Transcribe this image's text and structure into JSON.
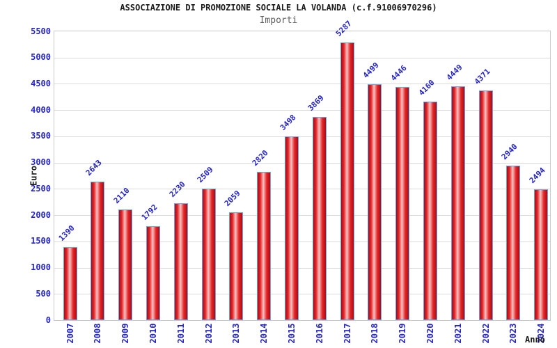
{
  "chart_data": {
    "type": "bar",
    "title": "ASSOCIAZIONE DI PROMOZIONE SOCIALE LA VOLANDA (c.f.91006970296)",
    "subtitle": "Importi",
    "xlabel": "Anno",
    "ylabel": "Euro",
    "categories": [
      "2007",
      "2008",
      "2009",
      "2010",
      "2011",
      "2012",
      "2013",
      "2014",
      "2015",
      "2016",
      "2017",
      "2018",
      "2019",
      "2020",
      "2021",
      "2022",
      "2023",
      "2024"
    ],
    "values": [
      1390,
      2643,
      2110,
      1792,
      2230,
      2509,
      2059,
      2820,
      3498,
      3869,
      5287,
      4499,
      4446,
      4160,
      4449,
      4371,
      2940,
      2494
    ],
    "ylim": [
      0,
      5500
    ],
    "ytick_step": 500,
    "grid": true,
    "legend_position": "none",
    "colors": {
      "label_blue": "#2323cb",
      "bar_dark": "#a80c14",
      "bar_red": "#e62628",
      "bar_light": "#f9c3c3",
      "bar_border": "#64a8e8",
      "band_gray": "#f2f2f2",
      "band_white": "#ffffff",
      "grid_line": "#dadada",
      "frame": "#c9c9c9",
      "title_color": "#1a1a1a",
      "subtitle_color": "#5f5f5f"
    }
  }
}
